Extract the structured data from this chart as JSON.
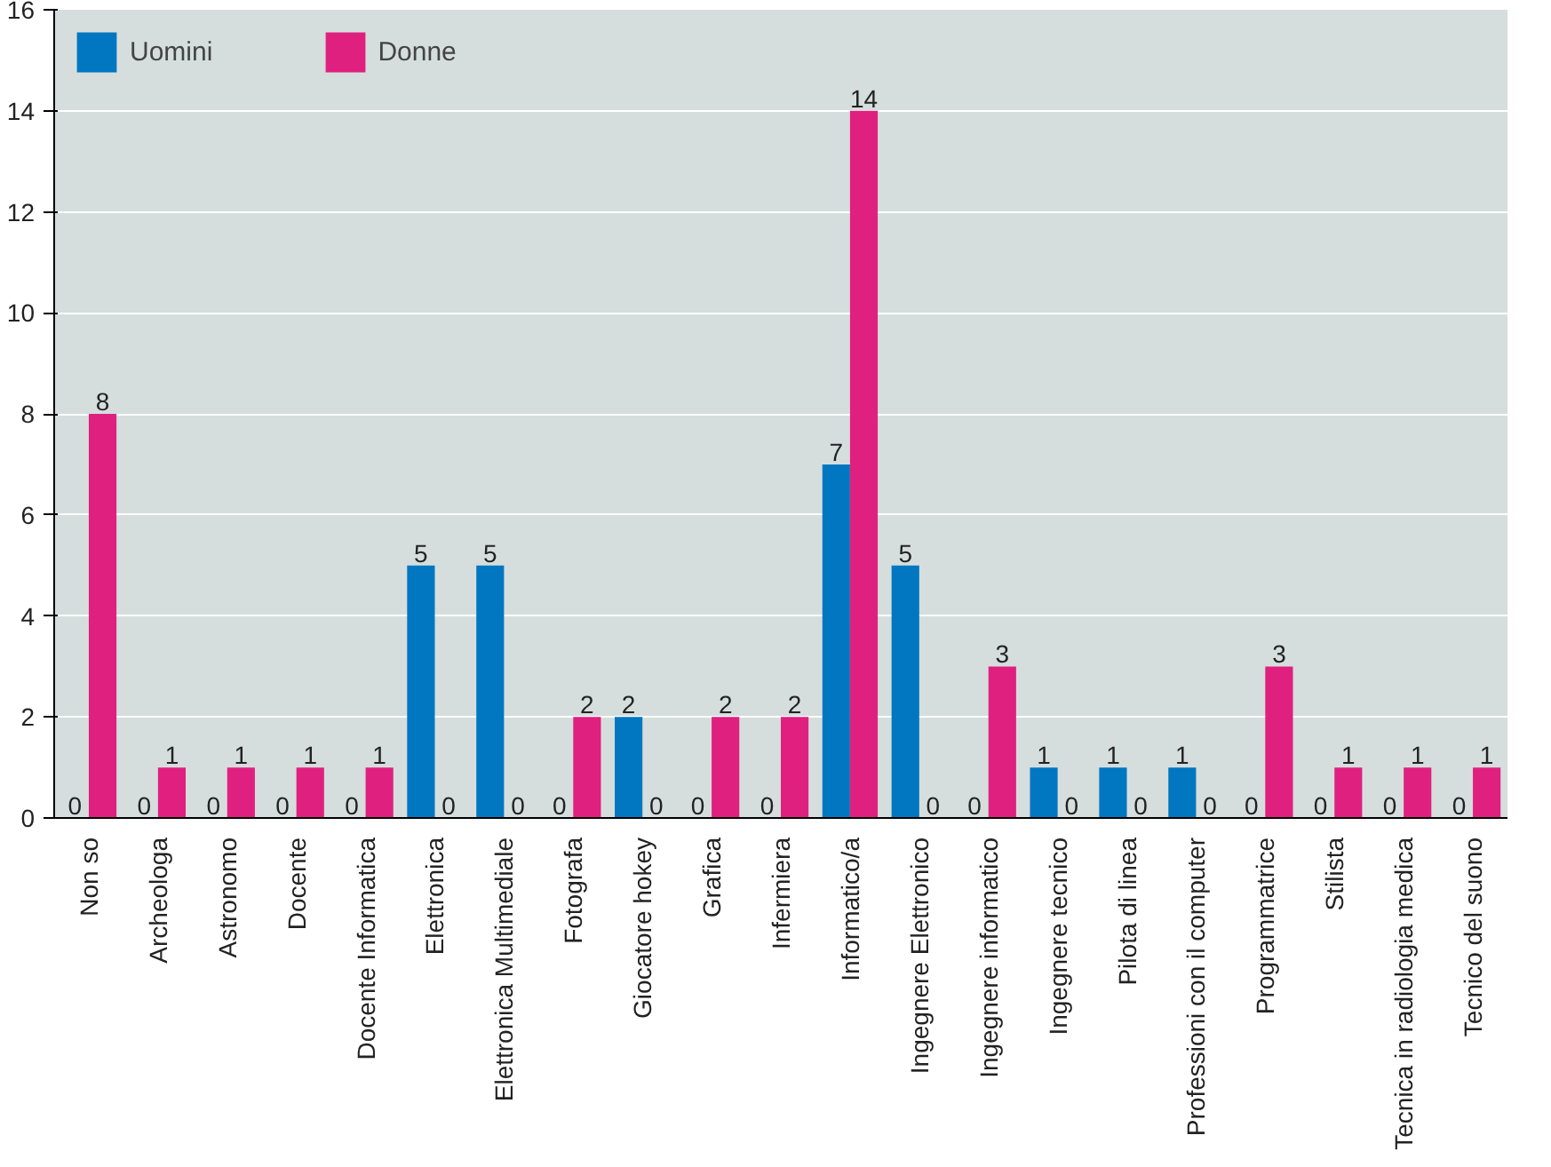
{
  "chart_data": {
    "type": "bar",
    "categories": [
      "Non so",
      "Archeologa",
      "Astronomo",
      "Docente",
      "Docente Informatica",
      "Elettronica",
      "Elettronica Multimediale",
      "Fotografa",
      "Giocatore hokey",
      "Grafica",
      "Infermiera",
      "Informatico/a",
      "Ingegnere Elettronico",
      "Ingegnere informatico",
      "Ingegnere tecnico",
      "Pilota di linea",
      "Professioni con il computer",
      "Programmatrice",
      "Stilista",
      "Tecnica in radiologia medica",
      "Tecnico del suono"
    ],
    "series": [
      {
        "name": "Uomini",
        "color": "#0077c0",
        "values": [
          0,
          0,
          0,
          0,
          0,
          5,
          5,
          0,
          2,
          0,
          0,
          7,
          5,
          0,
          1,
          1,
          1,
          0,
          0,
          0,
          0
        ]
      },
      {
        "name": "Donne",
        "color": "#e0207f",
        "values": [
          8,
          1,
          1,
          1,
          1,
          0,
          0,
          2,
          0,
          2,
          2,
          14,
          0,
          3,
          0,
          0,
          0,
          3,
          1,
          1,
          1
        ]
      }
    ],
    "ylim": [
      0,
      16
    ],
    "yticks": [
      0,
      2,
      4,
      6,
      8,
      10,
      12,
      14,
      16
    ],
    "grid": "y",
    "legend": "top left",
    "data_labels": true
  }
}
